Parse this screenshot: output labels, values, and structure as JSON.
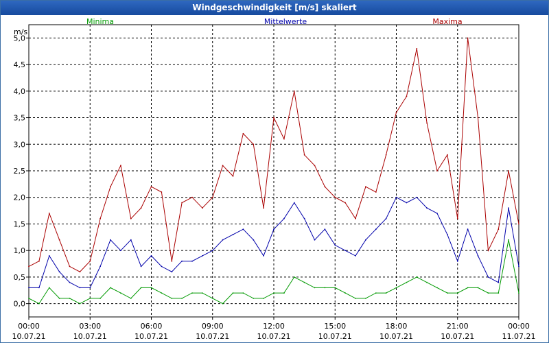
{
  "window": {
    "title": "Windgeschwindigkeit [m/s] skaliert"
  },
  "chart_data": {
    "type": "line",
    "title": "Windgeschwindigkeit [m/s] skaliert",
    "ylabel": "m/s",
    "xlabel": "",
    "ylim": [
      -0.25,
      5.25
    ],
    "xlim": [
      0,
      24
    ],
    "grid": true,
    "y_ticks": [
      0.0,
      0.5,
      1.0,
      1.5,
      2.0,
      2.5,
      3.0,
      3.5,
      4.0,
      4.5,
      5.0
    ],
    "y_tick_labels": [
      "0,0",
      "0,5",
      "1,0",
      "1,5",
      "2,0",
      "2,5",
      "3,0",
      "3,5",
      "4,0",
      "4,5",
      "5,0"
    ],
    "x_ticks": [
      0,
      3,
      6,
      9,
      12,
      15,
      18,
      21,
      24
    ],
    "x_tick_times": [
      "00:00",
      "03:00",
      "06:00",
      "09:00",
      "12:00",
      "15:00",
      "18:00",
      "21:00",
      "00:00"
    ],
    "x_tick_dates": [
      "10.07.21",
      "10.07.21",
      "10.07.21",
      "10.07.21",
      "10.07.21",
      "10.07.21",
      "10.07.21",
      "10.07.21",
      "11.07.21"
    ],
    "x_hours": [
      0,
      0.5,
      1,
      1.5,
      2,
      2.5,
      3,
      3.5,
      4,
      4.5,
      5,
      5.5,
      6,
      6.5,
      7,
      7.5,
      8,
      8.5,
      9,
      9.5,
      10,
      10.5,
      11,
      11.5,
      12,
      12.5,
      13,
      13.5,
      14,
      14.5,
      15,
      15.5,
      16,
      16.5,
      17,
      17.5,
      18,
      18.5,
      19,
      19.5,
      20,
      20.5,
      21,
      21.5,
      22,
      22.5,
      23,
      23.5,
      24
    ],
    "series": [
      {
        "name": "Minima",
        "color": "#009900",
        "values": [
          0.1,
          0.0,
          0.3,
          0.1,
          0.1,
          0.0,
          0.1,
          0.1,
          0.3,
          0.2,
          0.1,
          0.3,
          0.3,
          0.2,
          0.1,
          0.1,
          0.2,
          0.2,
          0.1,
          0.0,
          0.2,
          0.2,
          0.1,
          0.1,
          0.2,
          0.2,
          0.5,
          0.4,
          0.3,
          0.3,
          0.3,
          0.2,
          0.1,
          0.1,
          0.2,
          0.2,
          0.3,
          0.4,
          0.5,
          0.4,
          0.3,
          0.2,
          0.2,
          0.3,
          0.3,
          0.2,
          0.2,
          1.2,
          0.2
        ]
      },
      {
        "name": "Mittelwerte",
        "color": "#0000aa",
        "values": [
          0.3,
          0.3,
          0.9,
          0.6,
          0.4,
          0.3,
          0.3,
          0.7,
          1.2,
          1.0,
          1.2,
          0.7,
          0.9,
          0.7,
          0.6,
          0.8,
          0.8,
          0.9,
          1.0,
          1.2,
          1.3,
          1.4,
          1.2,
          0.9,
          1.4,
          1.6,
          1.9,
          1.6,
          1.2,
          1.4,
          1.1,
          1.0,
          0.9,
          1.2,
          1.4,
          1.6,
          2.0,
          1.9,
          2.0,
          1.8,
          1.7,
          1.3,
          0.8,
          1.4,
          0.9,
          0.5,
          0.4,
          1.8,
          0.7
        ]
      },
      {
        "name": "Maxima",
        "color": "#aa0000",
        "values": [
          0.7,
          0.8,
          1.7,
          1.2,
          0.7,
          0.6,
          0.8,
          1.6,
          2.2,
          2.6,
          1.6,
          1.8,
          2.2,
          2.1,
          0.8,
          1.9,
          2.0,
          1.8,
          2.0,
          2.6,
          2.4,
          3.2,
          3.0,
          1.8,
          3.5,
          3.1,
          4.0,
          2.8,
          2.6,
          2.2,
          2.0,
          1.9,
          1.6,
          2.2,
          2.1,
          2.8,
          3.6,
          3.9,
          4.8,
          3.4,
          2.5,
          2.8,
          1.6,
          5.0,
          3.5,
          1.0,
          1.4,
          2.5,
          1.5
        ]
      }
    ]
  }
}
